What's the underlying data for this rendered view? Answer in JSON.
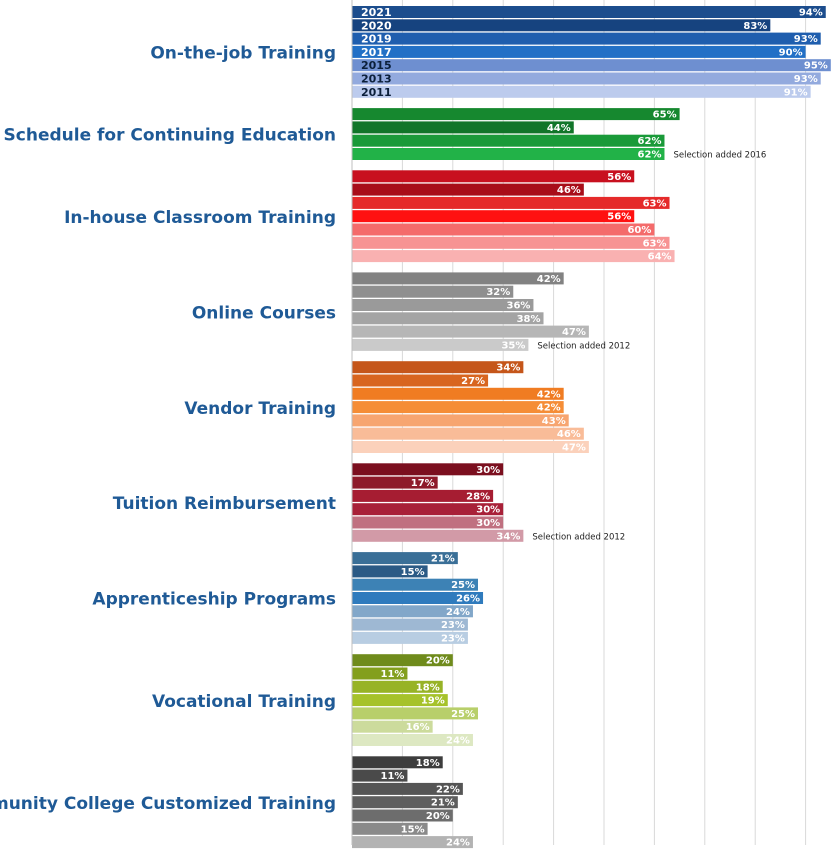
{
  "chart_data": {
    "type": "bar",
    "orientation": "horizontal",
    "xlim": [
      0,
      95
    ],
    "grid": true,
    "title": "",
    "xlabel": "",
    "ylabel": "",
    "years": [
      "2021",
      "2020",
      "2019",
      "2017",
      "2015",
      "2013",
      "2011"
    ],
    "categories": [
      {
        "name": "On-the-job Training",
        "values": [
          94,
          83,
          93,
          90,
          95,
          93,
          91
        ],
        "colors": [
          "#1c4d8d",
          "#16437f",
          "#1f5eae",
          "#2270c6",
          "#6e8fd0",
          "#93aade",
          "#bccbed"
        ],
        "note": ""
      },
      {
        "name": "Flexible Schedule for Continuing Education",
        "values": [
          65,
          44,
          62,
          62
        ],
        "colors": [
          "#16882f",
          "#117529",
          "#1a9a39",
          "#22b248"
        ],
        "note": "Selection added 2016",
        "note_row": 3
      },
      {
        "name": "In-house Classroom Training",
        "values": [
          56,
          46,
          63,
          56,
          60,
          63,
          64
        ],
        "colors": [
          "#c8101f",
          "#a80d19",
          "#e52a2a",
          "#ff1111",
          "#f46b6b",
          "#f79393",
          "#f9b1b1"
        ],
        "note": ""
      },
      {
        "name": "Online Courses",
        "values": [
          42,
          32,
          36,
          38,
          47,
          35
        ],
        "colors": [
          "#828282",
          "#8f8f8f",
          "#9a9a9a",
          "#a4a4a4",
          "#b6b6b6",
          "#cacaca"
        ],
        "note": "Selection added 2012",
        "note_row": 5
      },
      {
        "name": "Vendor Training",
        "values": [
          34,
          27,
          42,
          42,
          43,
          46,
          47
        ],
        "colors": [
          "#c5561a",
          "#d8651f",
          "#f07c22",
          "#f58d36",
          "#f7a570",
          "#f9bc98",
          "#fbd1bb"
        ],
        "note": ""
      },
      {
        "name": "Tuition Reimbursement",
        "values": [
          30,
          17,
          28,
          30,
          30,
          34
        ],
        "colors": [
          "#7b0f1f",
          "#8e1a2a",
          "#a61d32",
          "#a82038",
          "#c07080",
          "#d29aa7"
        ],
        "note": "Selection added 2012",
        "note_row": 5
      },
      {
        "name": "Apprenticeship Programs",
        "values": [
          21,
          15,
          25,
          26,
          24,
          23,
          23
        ],
        "colors": [
          "#3a6f97",
          "#2b5a85",
          "#3d82b5",
          "#2f7bbd",
          "#82a7c9",
          "#9eb8d3",
          "#b8cde2"
        ],
        "note": ""
      },
      {
        "name": "Vocational Training",
        "values": [
          20,
          11,
          18,
          19,
          25,
          16,
          24
        ],
        "colors": [
          "#6f8b1c",
          "#839f1d",
          "#97b326",
          "#a6c22a",
          "#b8cf6a",
          "#ccdb9c",
          "#dde8c2"
        ],
        "note": ""
      },
      {
        "name": "Community College Customized Training",
        "values": [
          18,
          11,
          22,
          21,
          20,
          15,
          24
        ],
        "colors": [
          "#3d3d3d",
          "#4a4a4a",
          "#555555",
          "#5e5e5e",
          "#6d6d6d",
          "#8a8a8a",
          "#b3b3b3"
        ],
        "note": ""
      }
    ]
  }
}
